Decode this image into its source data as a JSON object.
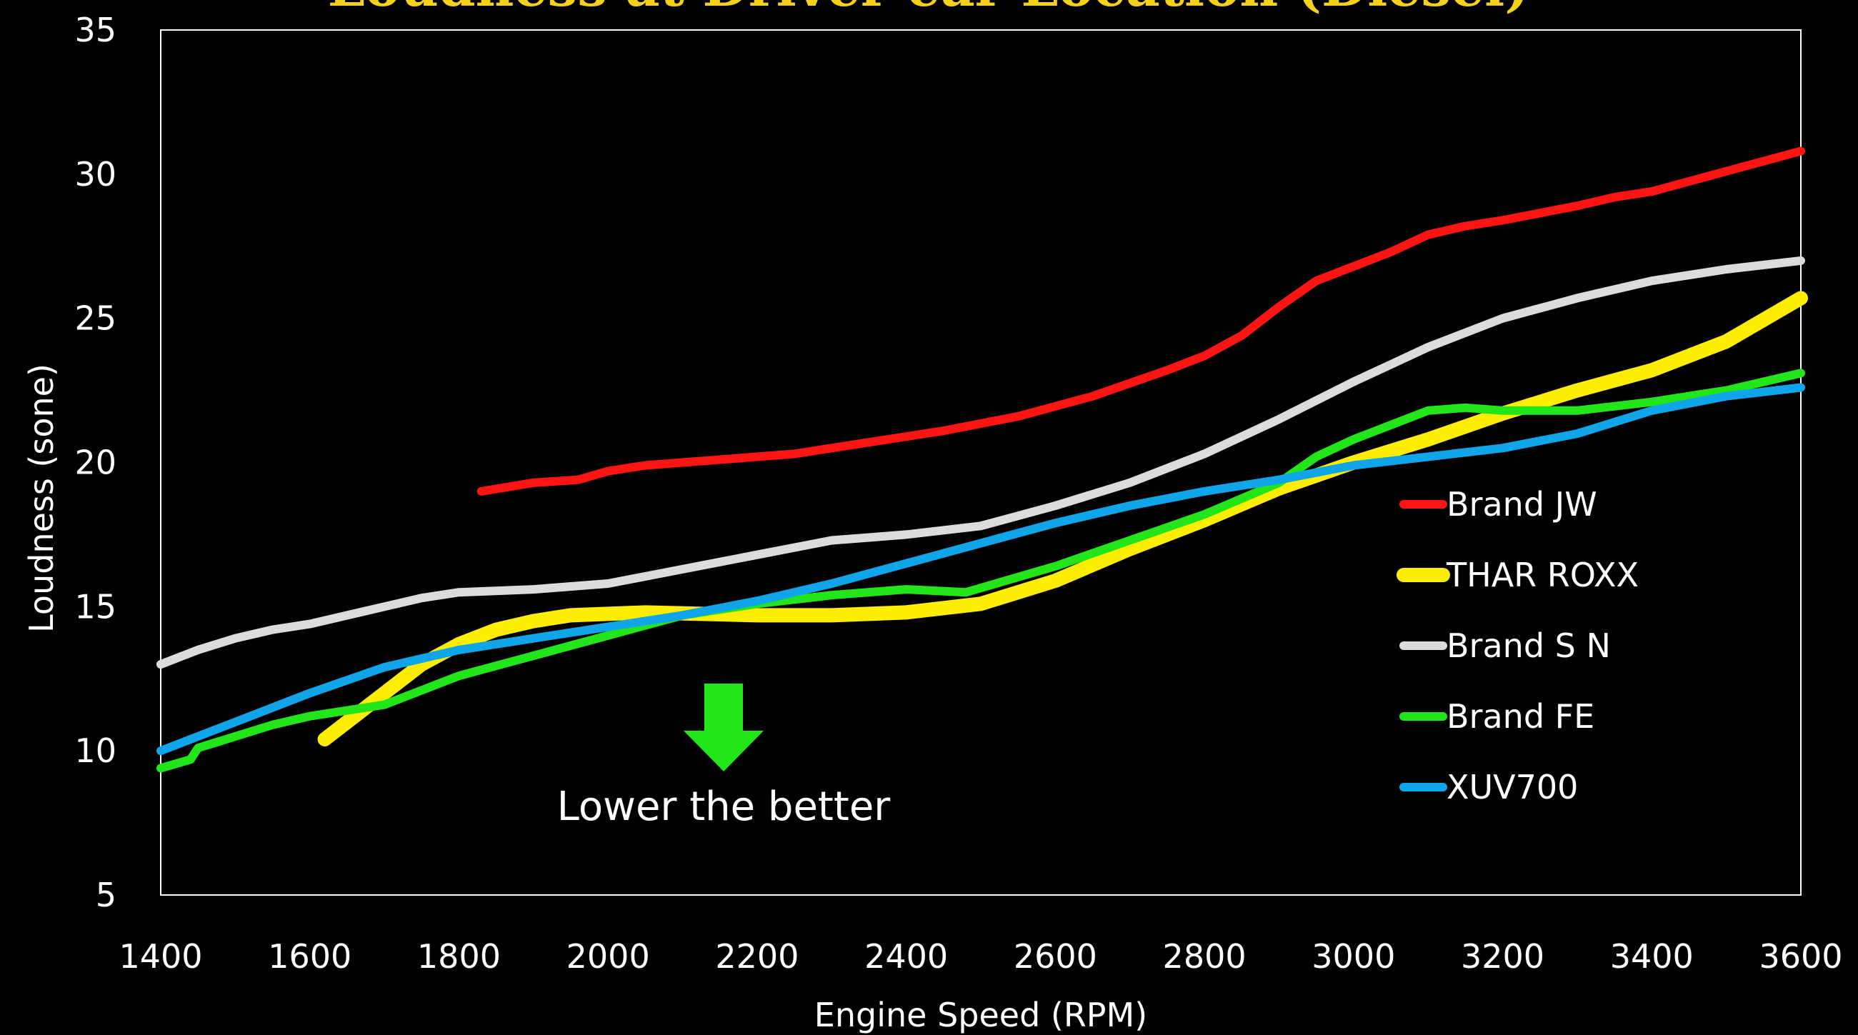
{
  "chart_data": {
    "type": "line",
    "title": "Loudness at Driver ear Location (Diesel)",
    "xlabel": "Engine Speed (RPM)",
    "ylabel": "Loudness (sone)",
    "xlim": [
      1400,
      3600
    ],
    "ylim": [
      5,
      35
    ],
    "x_ticks": [
      "1400",
      "1600",
      "1800",
      "2000",
      "2200",
      "2400",
      "2600",
      "2800",
      "3000",
      "3200",
      "3400",
      "3600"
    ],
    "y_ticks": [
      "5",
      "10",
      "15",
      "20",
      "25",
      "30",
      "35"
    ],
    "grid": false,
    "legend_position": "right",
    "annotation": "Lower the better",
    "annotation_arrow_color": "#22e51a",
    "series": [
      {
        "name": "Brand JW",
        "color": "#ff1414",
        "x": [
          1830,
          1900,
          1960,
          2000,
          2050,
          2150,
          2250,
          2350,
          2450,
          2550,
          2650,
          2750,
          2800,
          2850,
          2900,
          2950,
          3000,
          3050,
          3100,
          3150,
          3200,
          3300,
          3350,
          3400,
          3500,
          3600
        ],
        "y": [
          19.0,
          19.3,
          19.4,
          19.7,
          19.9,
          20.1,
          20.3,
          20.7,
          21.1,
          21.6,
          22.3,
          23.2,
          23.7,
          24.4,
          25.4,
          26.3,
          26.8,
          27.3,
          27.9,
          28.2,
          28.4,
          28.9,
          29.2,
          29.4,
          30.1,
          30.8
        ]
      },
      {
        "name": "THAR ROXX",
        "color": "#ffee00",
        "x": [
          1620,
          1650,
          1700,
          1750,
          1800,
          1850,
          1900,
          1950,
          2050,
          2200,
          2300,
          2400,
          2500,
          2600,
          2700,
          2800,
          2900,
          3000,
          3100,
          3200,
          3300,
          3400,
          3500,
          3600
        ],
        "y": [
          10.4,
          11.0,
          12.0,
          13.0,
          13.7,
          14.2,
          14.5,
          14.7,
          14.8,
          14.7,
          14.7,
          14.8,
          15.1,
          15.9,
          17.0,
          18.0,
          19.1,
          20.0,
          20.8,
          21.7,
          22.5,
          23.2,
          24.2,
          25.7
        ]
      },
      {
        "name": "Brand S N",
        "color": "#dcdcdc",
        "x": [
          1400,
          1450,
          1500,
          1550,
          1600,
          1700,
          1750,
          1800,
          1900,
          2000,
          2100,
          2200,
          2300,
          2350,
          2400,
          2500,
          2600,
          2700,
          2800,
          2900,
          3000,
          3050,
          3100,
          3200,
          3300,
          3400,
          3500,
          3600
        ],
        "y": [
          13.0,
          13.5,
          13.9,
          14.2,
          14.4,
          15.0,
          15.3,
          15.5,
          15.6,
          15.8,
          16.3,
          16.8,
          17.3,
          17.4,
          17.5,
          17.8,
          18.5,
          19.3,
          20.3,
          21.5,
          22.8,
          23.4,
          24.0,
          25.0,
          25.7,
          26.3,
          26.7,
          27.0
        ]
      },
      {
        "name": "Brand FE",
        "color": "#22e51a",
        "x": [
          1400,
          1440,
          1450,
          1500,
          1550,
          1600,
          1700,
          1800,
          1900,
          2000,
          2100,
          2200,
          2300,
          2400,
          2480,
          2600,
          2700,
          2800,
          2900,
          2950,
          3000,
          3050,
          3100,
          3150,
          3200,
          3300,
          3400,
          3500,
          3550,
          3600
        ],
        "y": [
          9.4,
          9.7,
          10.1,
          10.5,
          10.9,
          11.2,
          11.6,
          12.6,
          13.3,
          14.0,
          14.7,
          15.1,
          15.4,
          15.6,
          15.5,
          16.4,
          17.3,
          18.2,
          19.3,
          20.2,
          20.8,
          21.3,
          21.8,
          21.9,
          21.8,
          21.8,
          22.1,
          22.5,
          22.8,
          23.1
        ]
      },
      {
        "name": "XUV700",
        "color": "#0fa5e8",
        "x": [
          1400,
          1500,
          1600,
          1700,
          1800,
          1900,
          2000,
          2100,
          2200,
          2300,
          2400,
          2500,
          2600,
          2700,
          2800,
          2900,
          3000,
          3100,
          3200,
          3300,
          3400,
          3500,
          3600
        ],
        "y": [
          10.0,
          11.0,
          12.0,
          12.9,
          13.5,
          13.9,
          14.3,
          14.7,
          15.2,
          15.8,
          16.5,
          17.2,
          17.9,
          18.5,
          19.0,
          19.4,
          19.9,
          20.2,
          20.5,
          21.0,
          21.8,
          22.3,
          22.6
        ]
      }
    ]
  }
}
